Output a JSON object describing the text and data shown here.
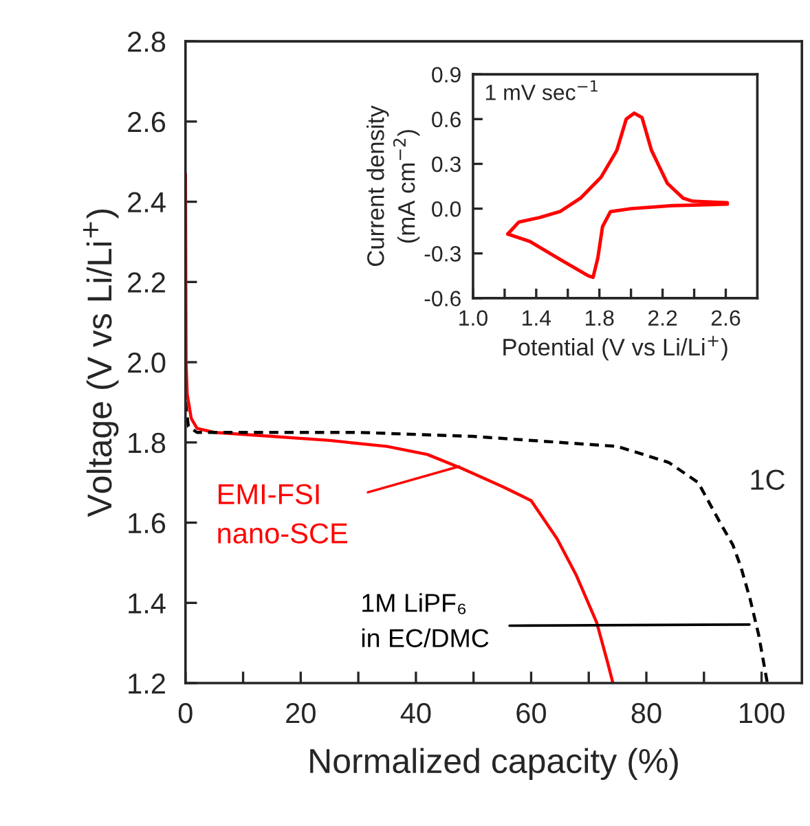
{
  "chart_data": [
    {
      "type": "line",
      "xlabel": "Normalized capacity (%)",
      "ylabel": "Voltage (V vs Li/Li$^{+}$)",
      "xlim": [
        0,
        107
      ],
      "ylim": [
        1.2,
        2.8
      ],
      "xticks": [
        0,
        {
          "value": 10,
          "label": null
        },
        20,
        {
          "value": 30,
          "label": null
        },
        40,
        {
          "value": 50,
          "label": null
        },
        60,
        {
          "value": 70,
          "label": null
        },
        80,
        {
          "value": 90,
          "label": null
        },
        100
      ],
      "yticks": [
        1.2,
        1.4,
        1.6,
        1.8,
        {
          "value": 2.0,
          "label": "2.0"
        },
        2.2,
        2.4,
        2.6,
        2.8
      ],
      "grid": false,
      "legend": false,
      "marker": "none",
      "annotations": [
        "1C"
      ],
      "series": [
        {
          "name": "EMI-FSI\nnano-SCE",
          "color": "#ff0000",
          "line_style": "solid",
          "x": [
            0,
            0.1,
            0.3,
            1,
            2,
            5,
            15,
            25,
            35,
            42,
            48,
            55,
            60,
            64.5,
            67.8,
            71.4,
            73.3,
            74.2
          ],
          "values": [
            2.47,
            2.0,
            1.92,
            1.86,
            1.835,
            1.825,
            1.815,
            1.805,
            1.79,
            1.77,
            1.735,
            1.69,
            1.655,
            1.56,
            1.47,
            1.35,
            1.25,
            1.2
          ]
        },
        {
          "name": "1M LiPF₆\nin EC/DMC",
          "color": "#000000",
          "line_style": "dashed",
          "x": [
            0,
            0.5,
            2,
            10,
            30,
            50,
            65,
            75,
            83.9,
            89,
            92.8,
            95,
            96.4,
            98,
            99.5,
            100.5,
            101
          ],
          "values": [
            1.9,
            1.84,
            1.825,
            1.825,
            1.825,
            1.815,
            1.8,
            1.79,
            1.75,
            1.7,
            1.6,
            1.545,
            1.49,
            1.41,
            1.32,
            1.24,
            1.2
          ]
        }
      ]
    },
    {
      "type": "line",
      "xlabel": "Potential (V vs Li/Li$^{+}$)",
      "ylabel": "Current density\n(mA cm$^{−2}$)",
      "xlim": [
        1.0,
        2.8
      ],
      "ylim": [
        -0.6,
        0.9
      ],
      "xticks": [
        {
          "value": 1.0,
          "label": "1.0"
        },
        {
          "value": 1.2,
          "label": null
        },
        1.4,
        {
          "value": 1.6,
          "label": null
        },
        1.8,
        {
          "value": 2.0,
          "label": null
        },
        2.2,
        {
          "value": 2.4,
          "label": null
        },
        2.6
      ],
      "yticks": [
        {
          "value": -0.6,
          "label": "-0.6"
        },
        {
          "value": -0.3,
          "label": "-0.3"
        },
        {
          "value": 0.0,
          "label": "0.0"
        },
        0.3,
        0.6,
        0.9
      ],
      "grid": false,
      "legend": false,
      "marker": "none",
      "annotations": [
        "1 mV sec$^{−1}$"
      ],
      "series": [
        {
          "color": "#ff0000",
          "line_style": "solid",
          "x": [
            1.22,
            1.29,
            1.42,
            1.55,
            1.68,
            1.81,
            1.91,
            1.97,
            2.02,
            2.07,
            2.13,
            2.23,
            2.33,
            2.39,
            2.61
          ],
          "values": [
            -0.17,
            -0.09,
            -0.06,
            -0.02,
            0.07,
            0.21,
            0.39,
            0.6,
            0.64,
            0.61,
            0.39,
            0.17,
            0.07,
            0.05,
            0.04
          ]
        },
        {
          "color": "#ff0000",
          "line_style": "solid",
          "x": [
            2.61,
            2.26,
            2.0,
            1.87,
            1.82,
            1.79,
            1.76,
            1.73,
            1.55,
            1.36,
            1.22
          ],
          "values": [
            0.03,
            0.02,
            0.0,
            -0.02,
            -0.12,
            -0.33,
            -0.46,
            -0.45,
            -0.34,
            -0.22,
            -0.17
          ]
        }
      ]
    }
  ]
}
